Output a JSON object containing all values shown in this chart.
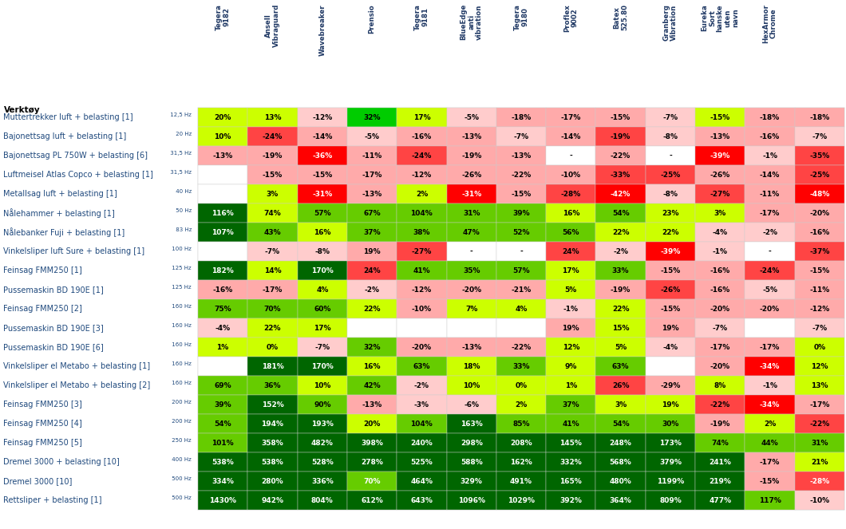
{
  "col_headers": [
    "Tegera\n9182",
    "Ansell\nVibraguard",
    "Wavebreaker",
    "Prensio",
    "Tegera\n9181",
    "BlueEdge\nanti\nvibration",
    "Tegera\n9180",
    "Proflex\n9002",
    "Batex\n525.80",
    "Granberg\nVibration",
    "Eureka\nSort\nhanske\nuten\nnavn",
    "HexArmor\nChrome"
  ],
  "row_headers": [
    [
      "Muttertrekker luft + belasting [1]",
      "12,5 Hz"
    ],
    [
      "Bajonettsag luft + belasting [1]",
      "20 Hz"
    ],
    [
      "Bajonettsag PL 750W + belasting [6]",
      "31,5 Hz"
    ],
    [
      "Luftmeisel Atlas Copco + belasting [1]",
      "31,5 Hz"
    ],
    [
      "Metallsag luft + belasting [1]",
      "40 Hz"
    ],
    [
      "Nålehammer + belasting [1]",
      "50 Hz"
    ],
    [
      "Nålebanker Fuji + belasting [1]",
      "83 Hz"
    ],
    [
      "Vinkelsliper luft Sure + belasting [1]",
      "100 Hz"
    ],
    [
      "Feinsag FMM250 [1]",
      "125 Hz"
    ],
    [
      "Pussemaskin BD 190E [1]",
      "125 Hz"
    ],
    [
      "Feinsag FMM250 [2]",
      "160 Hz"
    ],
    [
      "Pussemaskin BD 190E [3]",
      "160 Hz"
    ],
    [
      "Pussemaskin BD 190E [6]",
      "160 Hz"
    ],
    [
      "Vinkelsliper el Metabo + belasting [1]",
      "160 Hz"
    ],
    [
      "Vinkelsliper el Metabo + belasting [2]",
      "160 Hz"
    ],
    [
      "Feinsag FMM250 [3]",
      "200 Hz"
    ],
    [
      "Feinsag FMM250 [4]",
      "200 Hz"
    ],
    [
      "Feinsag FMM250 [5]",
      "250 Hz"
    ],
    [
      "Dremel 3000 + belasting [10]",
      "400 Hz"
    ],
    [
      "Dremel 3000 [10]",
      "500 Hz"
    ],
    [
      "Rettsliper + belasting [1]",
      "500 Hz"
    ]
  ],
  "values": [
    [
      "20%",
      "13%",
      "-12%",
      "32%",
      "17%",
      "-5%",
      "-18%",
      "-17%",
      "-15%",
      "-7%",
      "-15%",
      "-18%"
    ],
    [
      "10%",
      "-24%",
      "-14%",
      "-5%",
      "-16%",
      "-13%",
      "-7%",
      "-14%",
      "-19%",
      "-8%",
      "-13%",
      "-16%"
    ],
    [
      "-13%",
      "-19%",
      "-36%",
      "-11%",
      "-24%",
      "-19%",
      "-13%",
      "-",
      "-22%",
      "-",
      "-39%",
      "-1%"
    ],
    [
      "",
      "-15%",
      "-15%",
      "-17%",
      "-12%",
      "-26%",
      "-22%",
      "-10%",
      "-33%",
      "-25%",
      "-26%",
      "-14%"
    ],
    [
      "",
      "3%",
      "-31%",
      "-13%",
      "2%",
      "-31%",
      "-15%",
      "-28%",
      "-42%",
      "-8%",
      "-27%",
      "-11%"
    ],
    [
      "116%",
      "74%",
      "57%",
      "67%",
      "104%",
      "31%",
      "39%",
      "16%",
      "54%",
      "23%",
      "3%",
      "-17%"
    ],
    [
      "107%",
      "43%",
      "16%",
      "37%",
      "38%",
      "47%",
      "52%",
      "56%",
      "22%",
      "22%",
      "-4%",
      "-2%"
    ],
    [
      "",
      "-7%",
      "-8%",
      "19%",
      "-27%",
      "-",
      "-",
      "24%",
      "-2%",
      "-39%",
      "-1%",
      "-"
    ],
    [
      "182%",
      "14%",
      "170%",
      "24%",
      "41%",
      "35%",
      "57%",
      "17%",
      "33%",
      "-15%",
      "-16%",
      "-24%"
    ],
    [
      "-16%",
      "-17%",
      "4%",
      "-2%",
      "-12%",
      "-20%",
      "-21%",
      "5%",
      "-19%",
      "-26%",
      "-16%",
      "-5%"
    ],
    [
      "75%",
      "70%",
      "60%",
      "22%",
      "-10%",
      "7%",
      "4%",
      "-1%",
      "22%",
      "-15%",
      "-20%",
      "-20%"
    ],
    [
      "-4%",
      "22%",
      "17%",
      "",
      "",
      "",
      "",
      "19%",
      "15%",
      "19%",
      "-7%",
      ""
    ],
    [
      "1%",
      "0%",
      "-7%",
      "32%",
      "-20%",
      "-13%",
      "-22%",
      "12%",
      "5%",
      "-4%",
      "-17%",
      "-17%"
    ],
    [
      "",
      "181%",
      "170%",
      "16%",
      "63%",
      "18%",
      "33%",
      "9%",
      "63%",
      "",
      "-20%",
      "-34%"
    ],
    [
      "69%",
      "36%",
      "10%",
      "42%",
      "-2%",
      "10%",
      "0%",
      "1%",
      "26%",
      "-29%",
      "8%",
      "-1%"
    ],
    [
      "39%",
      "152%",
      "90%",
      "-13%",
      "-3%",
      "-6%",
      "2%",
      "37%",
      "3%",
      "19%",
      "-22%",
      "-34%"
    ],
    [
      "54%",
      "194%",
      "193%",
      "20%",
      "104%",
      "163%",
      "85%",
      "41%",
      "54%",
      "30%",
      "-19%",
      "2%"
    ],
    [
      "101%",
      "358%",
      "482%",
      "398%",
      "240%",
      "298%",
      "208%",
      "145%",
      "248%",
      "173%",
      "74%",
      "44%"
    ],
    [
      "538%",
      "538%",
      "528%",
      "278%",
      "525%",
      "588%",
      "162%",
      "332%",
      "568%",
      "379%",
      "241%",
      "-17%"
    ],
    [
      "334%",
      "280%",
      "336%",
      "70%",
      "464%",
      "329%",
      "491%",
      "165%",
      "480%",
      "1199%",
      "219%",
      "-15%"
    ],
    [
      "1430%",
      "942%",
      "804%",
      "612%",
      "643%",
      "1096%",
      "1029%",
      "392%",
      "364%",
      "809%",
      "477%",
      "117%"
    ]
  ],
  "extra_col_values": [
    "-18%",
    "-7%",
    "-35%",
    "-25%",
    "-48%",
    "-20%",
    "-16%",
    "-37%",
    "-15%",
    "-11%",
    "-12%",
    "-7%",
    "0%",
    "12%",
    "13%",
    "-17%",
    "-22%",
    "31%",
    "21%",
    "-28%",
    "-10%"
  ],
  "extra_col_colors": [
    "#ffaaaa",
    "#ffcccc",
    "#ff4444",
    "#ff4444",
    "#ff0000",
    "#ffaaaa",
    "#ffaaaa",
    "#ff4444",
    "#ffaaaa",
    "#ffaaaa",
    "#ffaaaa",
    "#ffcccc",
    "#ccff00",
    "#ccff00",
    "#ccff00",
    "#ffaaaa",
    "#ff4444",
    "#66cc00",
    "#ccff00",
    "#ff4444",
    "#ffcccc"
  ],
  "extra_col_text_colors": [
    "#000000",
    "#000000",
    "#000000",
    "#000000",
    "#ffffff",
    "#000000",
    "#000000",
    "#000000",
    "#000000",
    "#000000",
    "#000000",
    "#000000",
    "#000000",
    "#000000",
    "#000000",
    "#000000",
    "#000000",
    "#000000",
    "#000000",
    "#ffffff",
    "#000000"
  ],
  "colors": [
    [
      "#ccff00",
      "#ccff00",
      "#ffcccc",
      "#00cc00",
      "#ccff00",
      "#ffcccc",
      "#ffaaaa",
      "#ffaaaa",
      "#ffaaaa",
      "#ffcccc",
      "#ccff00",
      "#ffaaaa"
    ],
    [
      "#ccff00",
      "#ff4444",
      "#ffaaaa",
      "#ffcccc",
      "#ffaaaa",
      "#ffaaaa",
      "#ffcccc",
      "#ffaaaa",
      "#ff4444",
      "#ffcccc",
      "#ffaaaa",
      "#ffaaaa"
    ],
    [
      "#ffaaaa",
      "#ffaaaa",
      "#ff0000",
      "#ffaaaa",
      "#ff4444",
      "#ffaaaa",
      "#ffaaaa",
      "#ffffff",
      "#ffaaaa",
      "#ffffff",
      "#ff0000",
      "#ffcccc"
    ],
    [
      "#ffffff",
      "#ffaaaa",
      "#ffaaaa",
      "#ffaaaa",
      "#ffaaaa",
      "#ffaaaa",
      "#ffaaaa",
      "#ffaaaa",
      "#ff4444",
      "#ff4444",
      "#ffaaaa",
      "#ffaaaa"
    ],
    [
      "#ffffff",
      "#ccff00",
      "#ff0000",
      "#ffaaaa",
      "#ccff00",
      "#ff0000",
      "#ffaaaa",
      "#ff4444",
      "#ff0000",
      "#ffcccc",
      "#ff4444",
      "#ffaaaa"
    ],
    [
      "#006600",
      "#ccff00",
      "#66cc00",
      "#66cc00",
      "#66cc00",
      "#66cc00",
      "#66cc00",
      "#ccff00",
      "#66cc00",
      "#ccff00",
      "#ccff00",
      "#ffaaaa"
    ],
    [
      "#006600",
      "#66cc00",
      "#ccff00",
      "#66cc00",
      "#66cc00",
      "#66cc00",
      "#66cc00",
      "#66cc00",
      "#ccff00",
      "#ccff00",
      "#ffcccc",
      "#ffcccc"
    ],
    [
      "#ffffff",
      "#ffcccc",
      "#ffcccc",
      "#ffaaaa",
      "#ff4444",
      "#ffffff",
      "#ffffff",
      "#ff4444",
      "#ffcccc",
      "#ff0000",
      "#ffcccc",
      "#ffffff"
    ],
    [
      "#006600",
      "#ccff00",
      "#006600",
      "#ff4444",
      "#66cc00",
      "#66cc00",
      "#66cc00",
      "#ccff00",
      "#66cc00",
      "#ffaaaa",
      "#ffaaaa",
      "#ff4444"
    ],
    [
      "#ffaaaa",
      "#ffaaaa",
      "#ccff00",
      "#ffcccc",
      "#ffaaaa",
      "#ffaaaa",
      "#ffaaaa",
      "#ccff00",
      "#ffaaaa",
      "#ff4444",
      "#ffaaaa",
      "#ffcccc"
    ],
    [
      "#66cc00",
      "#66cc00",
      "#66cc00",
      "#ccff00",
      "#ffaaaa",
      "#ccff00",
      "#ccff00",
      "#ffcccc",
      "#ccff00",
      "#ffaaaa",
      "#ffaaaa",
      "#ffaaaa"
    ],
    [
      "#ffcccc",
      "#ccff00",
      "#ccff00",
      "#ffffff",
      "#ffffff",
      "#ffffff",
      "#ffffff",
      "#ffaaaa",
      "#ccff00",
      "#ffaaaa",
      "#ffcccc",
      "#ffffff"
    ],
    [
      "#ccff00",
      "#ccff00",
      "#ffcccc",
      "#66cc00",
      "#ffaaaa",
      "#ffaaaa",
      "#ffaaaa",
      "#ccff00",
      "#ccff00",
      "#ffcccc",
      "#ffaaaa",
      "#ffaaaa"
    ],
    [
      "#ffffff",
      "#006600",
      "#006600",
      "#ccff00",
      "#66cc00",
      "#ccff00",
      "#66cc00",
      "#ccff00",
      "#66cc00",
      "#ffffff",
      "#ffaaaa",
      "#ff0000"
    ],
    [
      "#66cc00",
      "#66cc00",
      "#ccff00",
      "#66cc00",
      "#ffcccc",
      "#ccff00",
      "#ccff00",
      "#ccff00",
      "#ff4444",
      "#ffaaaa",
      "#ccff00",
      "#ffcccc"
    ],
    [
      "#66cc00",
      "#006600",
      "#66cc00",
      "#ffaaaa",
      "#ffcccc",
      "#ffcccc",
      "#ccff00",
      "#66cc00",
      "#ccff00",
      "#ccff00",
      "#ff4444",
      "#ff0000"
    ],
    [
      "#66cc00",
      "#006600",
      "#006600",
      "#ccff00",
      "#66cc00",
      "#006600",
      "#66cc00",
      "#66cc00",
      "#66cc00",
      "#66cc00",
      "#ffaaaa",
      "#ccff00"
    ],
    [
      "#66cc00",
      "#006600",
      "#006600",
      "#006600",
      "#006600",
      "#006600",
      "#006600",
      "#006600",
      "#006600",
      "#006600",
      "#66cc00",
      "#66cc00"
    ],
    [
      "#006600",
      "#006600",
      "#006600",
      "#006600",
      "#006600",
      "#006600",
      "#006600",
      "#006600",
      "#006600",
      "#006600",
      "#006600",
      "#ffaaaa"
    ],
    [
      "#006600",
      "#006600",
      "#006600",
      "#66cc00",
      "#006600",
      "#006600",
      "#006600",
      "#006600",
      "#006600",
      "#006600",
      "#006600",
      "#ffaaaa"
    ],
    [
      "#006600",
      "#006600",
      "#006600",
      "#006600",
      "#006600",
      "#006600",
      "#006600",
      "#006600",
      "#006600",
      "#006600",
      "#006600",
      "#66cc00"
    ]
  ],
  "text_colors": [
    [
      "#000000",
      "#000000",
      "#000000",
      "#000000",
      "#000000",
      "#000000",
      "#000000",
      "#000000",
      "#000000",
      "#000000",
      "#000000",
      "#000000"
    ],
    [
      "#000000",
      "#000000",
      "#000000",
      "#000000",
      "#000000",
      "#000000",
      "#000000",
      "#000000",
      "#000000",
      "#000000",
      "#000000",
      "#000000"
    ],
    [
      "#000000",
      "#000000",
      "#ffffff",
      "#000000",
      "#000000",
      "#000000",
      "#000000",
      "#000000",
      "#000000",
      "#000000",
      "#ffffff",
      "#000000"
    ],
    [
      "#000000",
      "#000000",
      "#000000",
      "#000000",
      "#000000",
      "#000000",
      "#000000",
      "#000000",
      "#000000",
      "#000000",
      "#000000",
      "#000000"
    ],
    [
      "#000000",
      "#000000",
      "#ffffff",
      "#000000",
      "#000000",
      "#ffffff",
      "#000000",
      "#000000",
      "#ffffff",
      "#000000",
      "#000000",
      "#000000"
    ],
    [
      "#ffffff",
      "#000000",
      "#000000",
      "#000000",
      "#000000",
      "#000000",
      "#000000",
      "#000000",
      "#000000",
      "#000000",
      "#000000",
      "#000000"
    ],
    [
      "#ffffff",
      "#000000",
      "#000000",
      "#000000",
      "#000000",
      "#000000",
      "#000000",
      "#000000",
      "#000000",
      "#000000",
      "#000000",
      "#000000"
    ],
    [
      "#000000",
      "#000000",
      "#000000",
      "#000000",
      "#000000",
      "#000000",
      "#000000",
      "#000000",
      "#000000",
      "#ffffff",
      "#000000",
      "#000000"
    ],
    [
      "#ffffff",
      "#000000",
      "#ffffff",
      "#000000",
      "#000000",
      "#000000",
      "#000000",
      "#000000",
      "#000000",
      "#000000",
      "#000000",
      "#000000"
    ],
    [
      "#000000",
      "#000000",
      "#000000",
      "#000000",
      "#000000",
      "#000000",
      "#000000",
      "#000000",
      "#000000",
      "#000000",
      "#000000",
      "#000000"
    ],
    [
      "#000000",
      "#000000",
      "#000000",
      "#000000",
      "#000000",
      "#000000",
      "#000000",
      "#000000",
      "#000000",
      "#000000",
      "#000000",
      "#000000"
    ],
    [
      "#000000",
      "#000000",
      "#000000",
      "#000000",
      "#000000",
      "#000000",
      "#000000",
      "#000000",
      "#000000",
      "#000000",
      "#000000",
      "#000000"
    ],
    [
      "#000000",
      "#000000",
      "#000000",
      "#000000",
      "#000000",
      "#000000",
      "#000000",
      "#000000",
      "#000000",
      "#000000",
      "#000000",
      "#000000"
    ],
    [
      "#000000",
      "#ffffff",
      "#ffffff",
      "#000000",
      "#000000",
      "#000000",
      "#000000",
      "#000000",
      "#000000",
      "#000000",
      "#000000",
      "#ffffff"
    ],
    [
      "#000000",
      "#000000",
      "#000000",
      "#000000",
      "#000000",
      "#000000",
      "#000000",
      "#000000",
      "#000000",
      "#000000",
      "#000000",
      "#000000"
    ],
    [
      "#000000",
      "#ffffff",
      "#000000",
      "#000000",
      "#000000",
      "#000000",
      "#000000",
      "#000000",
      "#000000",
      "#000000",
      "#000000",
      "#ffffff"
    ],
    [
      "#000000",
      "#ffffff",
      "#ffffff",
      "#000000",
      "#000000",
      "#ffffff",
      "#000000",
      "#000000",
      "#000000",
      "#000000",
      "#000000",
      "#000000"
    ],
    [
      "#000000",
      "#ffffff",
      "#ffffff",
      "#ffffff",
      "#ffffff",
      "#ffffff",
      "#ffffff",
      "#ffffff",
      "#ffffff",
      "#ffffff",
      "#000000",
      "#000000"
    ],
    [
      "#ffffff",
      "#ffffff",
      "#ffffff",
      "#ffffff",
      "#ffffff",
      "#ffffff",
      "#ffffff",
      "#ffffff",
      "#ffffff",
      "#ffffff",
      "#ffffff",
      "#000000"
    ],
    [
      "#ffffff",
      "#ffffff",
      "#ffffff",
      "#ffffff",
      "#ffffff",
      "#ffffff",
      "#ffffff",
      "#ffffff",
      "#ffffff",
      "#ffffff",
      "#ffffff",
      "#000000"
    ],
    [
      "#ffffff",
      "#ffffff",
      "#ffffff",
      "#ffffff",
      "#ffffff",
      "#ffffff",
      "#ffffff",
      "#ffffff",
      "#ffffff",
      "#ffffff",
      "#ffffff",
      "#000000"
    ]
  ]
}
